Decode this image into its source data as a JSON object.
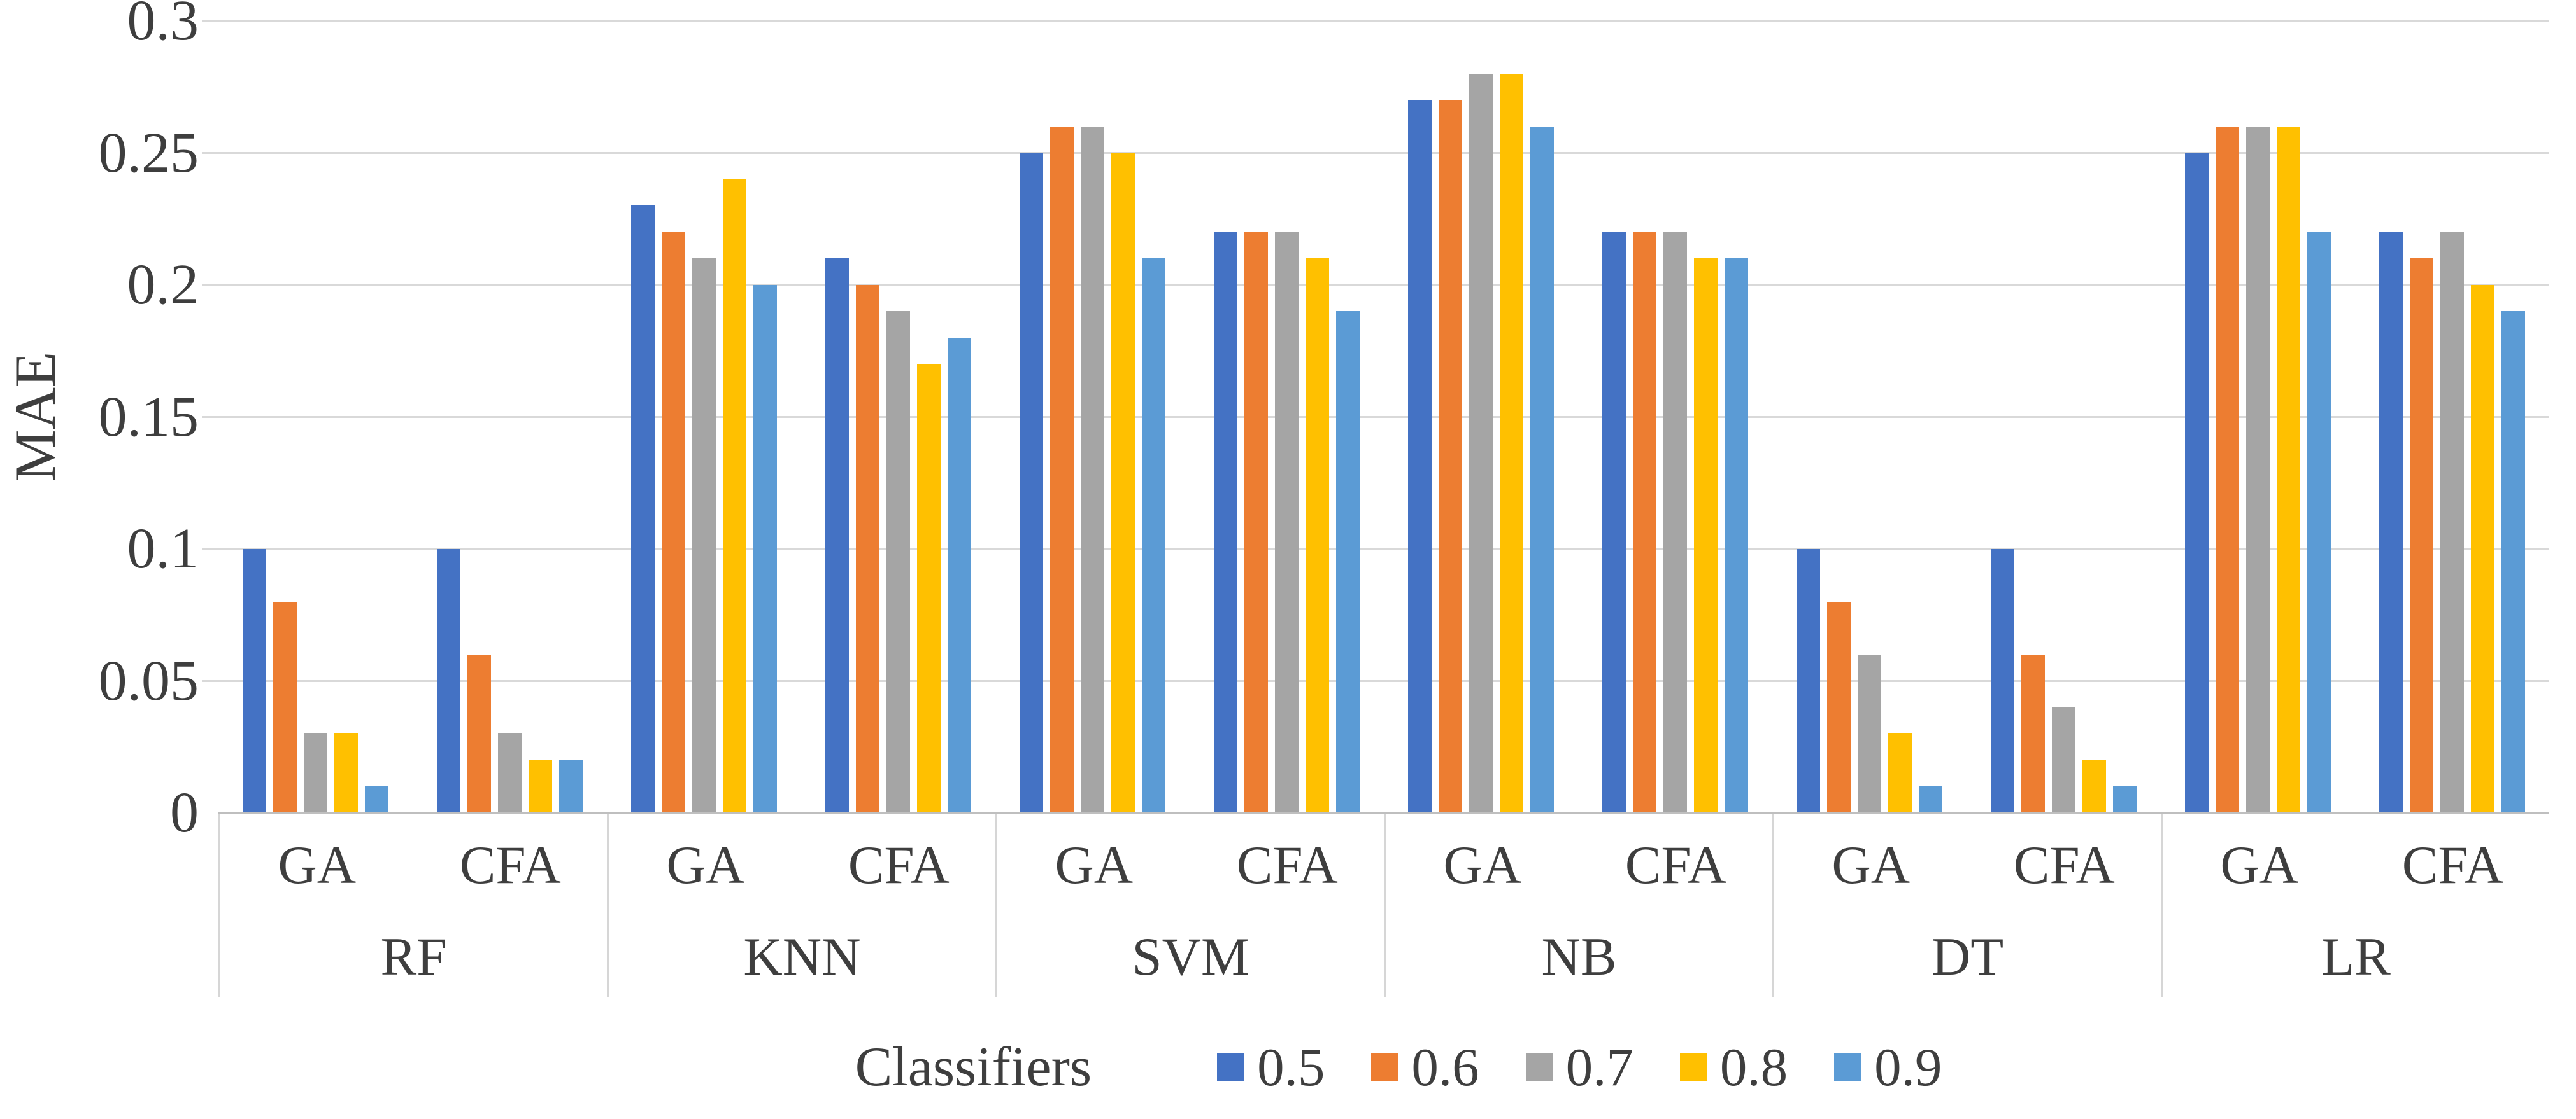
{
  "chart_data": {
    "type": "bar",
    "title": "",
    "xlabel": "Classifiers",
    "ylabel": "MAE",
    "ylim": [
      0,
      0.3
    ],
    "ytick_labels": [
      "0",
      "0.05",
      "0.1",
      "0.15",
      "0.2",
      "0.25",
      "0.3"
    ],
    "grid": true,
    "legend_position": "bottom",
    "axis_colors": {
      "gridline": "#d9d9d9",
      "axis_line": "#bfbfbf",
      "text": "#3e3e3e"
    },
    "series": [
      {
        "name": "0.5",
        "color": "#4472C4"
      },
      {
        "name": "0.6",
        "color": "#ED7D31"
      },
      {
        "name": "0.7",
        "color": "#A5A5A5"
      },
      {
        "name": "0.8",
        "color": "#FFC000"
      },
      {
        "name": "0.9",
        "color": "#5B9BD5"
      }
    ],
    "groups": [
      {
        "classifier": "RF",
        "subgroups": [
          {
            "label": "GA",
            "values": [
              0.1,
              0.08,
              0.03,
              0.03,
              0.01
            ]
          },
          {
            "label": "CFA",
            "values": [
              0.1,
              0.06,
              0.03,
              0.02,
              0.02
            ]
          }
        ]
      },
      {
        "classifier": "KNN",
        "subgroups": [
          {
            "label": "GA",
            "values": [
              0.23,
              0.22,
              0.21,
              0.24,
              0.2
            ]
          },
          {
            "label": "CFA",
            "values": [
              0.21,
              0.2,
              0.19,
              0.17,
              0.18
            ]
          }
        ]
      },
      {
        "classifier": "SVM",
        "subgroups": [
          {
            "label": "GA",
            "values": [
              0.25,
              0.26,
              0.26,
              0.25,
              0.21
            ]
          },
          {
            "label": "CFA",
            "values": [
              0.22,
              0.22,
              0.22,
              0.21,
              0.19
            ]
          }
        ]
      },
      {
        "classifier": "NB",
        "subgroups": [
          {
            "label": "GA",
            "values": [
              0.27,
              0.27,
              0.28,
              0.28,
              0.26
            ]
          },
          {
            "label": "CFA",
            "values": [
              0.22,
              0.22,
              0.22,
              0.21,
              0.21
            ]
          }
        ]
      },
      {
        "classifier": "DT",
        "subgroups": [
          {
            "label": "GA",
            "values": [
              0.1,
              0.08,
              0.06,
              0.03,
              0.01
            ]
          },
          {
            "label": "CFA",
            "values": [
              0.1,
              0.06,
              0.04,
              0.02,
              0.01
            ]
          }
        ]
      },
      {
        "classifier": "LR",
        "subgroups": [
          {
            "label": "GA",
            "values": [
              0.25,
              0.26,
              0.26,
              0.26,
              0.22
            ]
          },
          {
            "label": "CFA",
            "values": [
              0.22,
              0.21,
              0.22,
              0.2,
              0.19
            ]
          }
        ]
      }
    ]
  }
}
